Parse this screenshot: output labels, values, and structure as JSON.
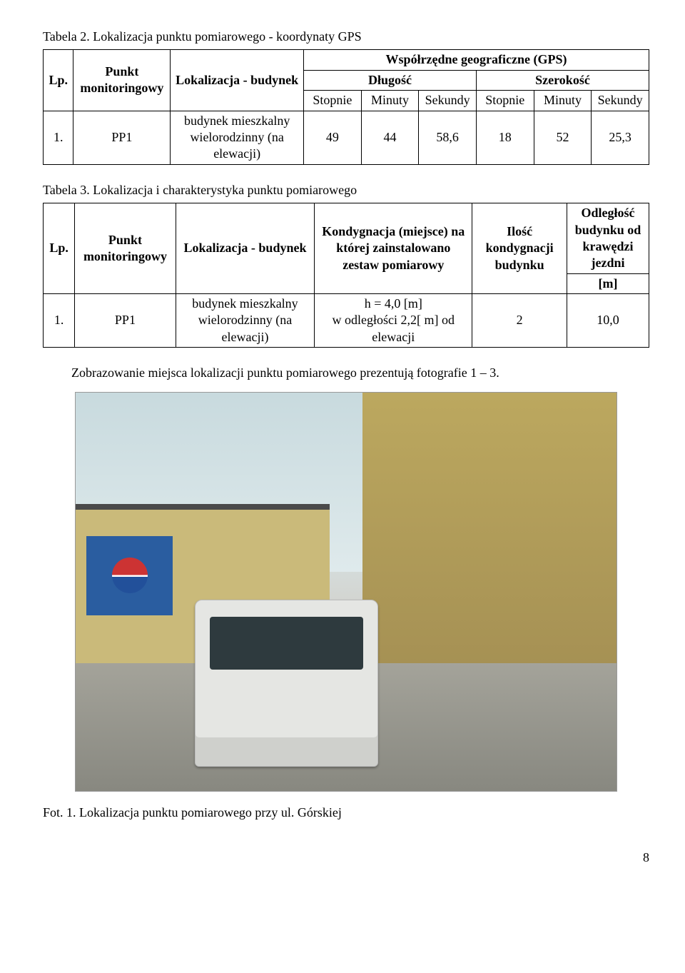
{
  "table2": {
    "caption": "Tabela 2. Lokalizacja punktu pomiarowego - koordynaty GPS",
    "headers": {
      "lp": "Lp.",
      "punkt": "Punkt monitoringowy",
      "lokal": "Lokalizacja - budynek",
      "gps": "Współrzędne geograficzne (GPS)",
      "dlugosc": "Długość",
      "szerokosc": "Szerokość",
      "stopnie1": "Stopnie",
      "minuty1": "Minuty",
      "sekundy1": "Sekundy",
      "stopnie2": "Stopnie",
      "minuty2": "Minuty",
      "sekundy2": "Sekundy"
    },
    "row": {
      "lp": "1.",
      "punkt": "PP1",
      "lokal": "budynek mieszkalny wielorodzinny (na elewacji)",
      "d_st": "49",
      "d_min": "44",
      "d_sek": "58,6",
      "s_st": "18",
      "s_min": "52",
      "s_sek": "25,3"
    }
  },
  "table3": {
    "caption": "Tabela 3. Lokalizacja i charakterystyka punktu pomiarowego",
    "headers": {
      "lp": "Lp.",
      "punkt": "Punkt monitoringowy",
      "lokal": "Lokalizacja - budynek",
      "kondy": "Kondygnacja (miejsce) na której zainstalowano zestaw pomiarowy",
      "ilosc": "Ilość kondygnacji budynku",
      "odl": "Odległość budynku od krawędzi jezdni",
      "odl_unit": "[m]"
    },
    "row": {
      "lp": "1.",
      "punkt": "PP1",
      "lokal": "budynek mieszkalny wielorodzinny (na elewacji)",
      "kondy": "h = 4,0 [m]\nw odległości 2,2[ m] od elewacji",
      "ilosc": "2",
      "odl": "10,0"
    }
  },
  "paragraph": "Zobrazowanie miejsca lokalizacji punktu pomiarowego prezentują fotografie 1 – 3.",
  "photo": {
    "alt": "Fotografia: budynek mieszkalny, samochód dostawczy, reklama Pepsi",
    "caption": "Fot. 1.  Lokalizacja punktu pomiarowego przy ul. Górskiej"
  },
  "page_number": "8"
}
